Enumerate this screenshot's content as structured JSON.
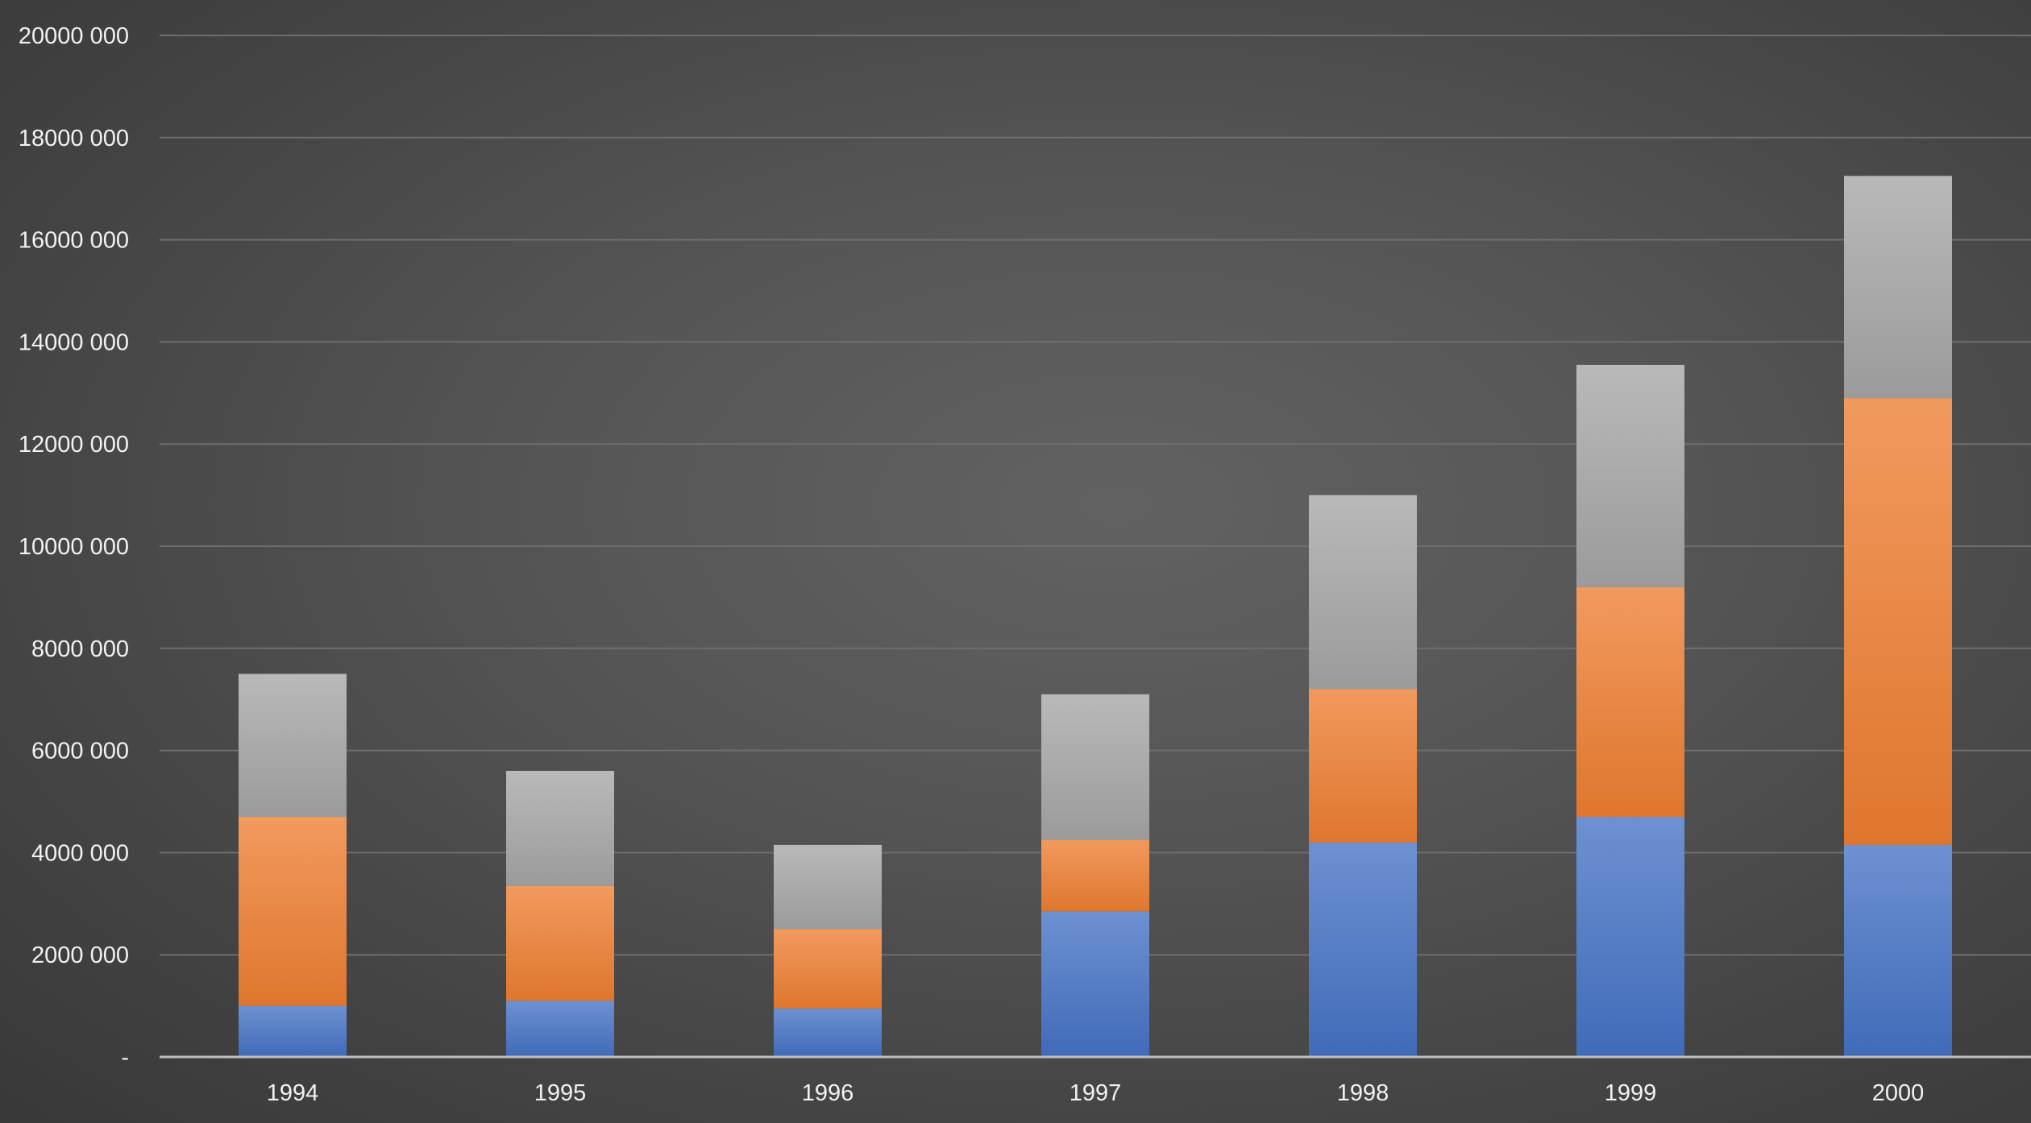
{
  "colors": {
    "background": "#4f4f4f",
    "gridline": "#6e6e6e",
    "axis_line": "#bfbfbf",
    "tick_label": "#f2f2f2"
  },
  "chart_data": {
    "type": "bar",
    "stacked": true,
    "title": "",
    "xlabel": "",
    "ylabel": "",
    "legend": "none",
    "grid": true,
    "categories": [
      "1994",
      "1995",
      "1996",
      "1997",
      "1998",
      "1999",
      "2000"
    ],
    "ylim": [
      0,
      20000000
    ],
    "y_ticks": [
      {
        "value": 0,
        "label": "-"
      },
      {
        "value": 2000000,
        "label": "2000 000"
      },
      {
        "value": 4000000,
        "label": "4000 000"
      },
      {
        "value": 6000000,
        "label": "6000 000"
      },
      {
        "value": 8000000,
        "label": "8000 000"
      },
      {
        "value": 10000000,
        "label": "10000 000"
      },
      {
        "value": 12000000,
        "label": "12000 000"
      },
      {
        "value": 14000000,
        "label": "14000 000"
      },
      {
        "value": 16000000,
        "label": "16000 000"
      },
      {
        "value": 18000000,
        "label": "18000 000"
      },
      {
        "value": 20000000,
        "label": "20000 000"
      }
    ],
    "series": [
      {
        "color": "#4472c4",
        "values": [
          1000000,
          1100000,
          950000,
          2850000,
          4200000,
          4700000,
          4150000
        ]
      },
      {
        "color": "#ed7d31",
        "values": [
          3700000,
          2250000,
          1550000,
          1400000,
          3000000,
          4500000,
          8750000
        ]
      },
      {
        "color": "#a5a5a5",
        "values": [
          2800000,
          2250000,
          1650000,
          2850000,
          3800000,
          4350000,
          4350000
        ]
      }
    ]
  }
}
